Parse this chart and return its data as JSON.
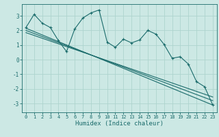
{
  "title": "",
  "xlabel": "Humidex (Indice chaleur)",
  "ylabel": "",
  "bg_color": "#cce8e4",
  "line_color": "#1a6b6b",
  "grid_color": "#aed4ce",
  "xlim": [
    -0.5,
    23.5
  ],
  "ylim": [
    -3.6,
    3.8
  ],
  "yticks": [
    -3,
    -2,
    -1,
    0,
    1,
    2,
    3
  ],
  "xticks": [
    0,
    1,
    2,
    3,
    4,
    5,
    6,
    7,
    8,
    9,
    10,
    11,
    12,
    13,
    14,
    15,
    16,
    17,
    18,
    19,
    20,
    21,
    22,
    23
  ],
  "main_x": [
    0,
    1,
    2,
    3,
    4,
    5,
    6,
    7,
    8,
    9,
    10,
    11,
    12,
    13,
    14,
    15,
    16,
    17,
    18,
    19,
    20,
    21,
    22,
    23
  ],
  "main_y": [
    2.2,
    3.1,
    2.5,
    2.2,
    1.3,
    0.55,
    2.1,
    2.85,
    3.2,
    3.4,
    1.2,
    0.85,
    1.4,
    1.15,
    1.35,
    2.0,
    1.75,
    1.05,
    0.1,
    0.2,
    -0.3,
    -1.5,
    -1.85,
    -3.1
  ],
  "line1_x": [
    0,
    23
  ],
  "line1_y": [
    2.15,
    -3.1
  ],
  "line2_x": [
    0,
    23
  ],
  "line2_y": [
    2.0,
    -2.8
  ],
  "line3_x": [
    0,
    23
  ],
  "line3_y": [
    1.85,
    -2.55
  ],
  "marker": "+"
}
